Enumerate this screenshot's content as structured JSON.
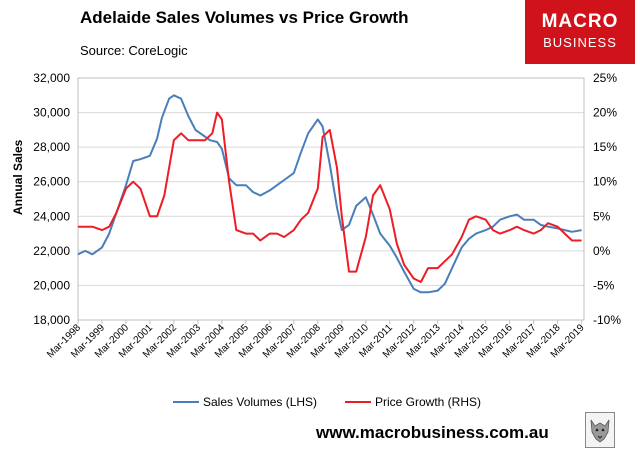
{
  "header": {
    "title": "Adelaide Sales Volumes vs Price Growth",
    "source": "Source: CoreLogic",
    "website": "www.macrobusiness.com.au"
  },
  "logo": {
    "line1": "MACRO",
    "line2": "BUSINESS",
    "color": "#d0121b"
  },
  "chart_data": {
    "type": "line",
    "title": "Adelaide Sales Volumes vs Price Growth",
    "ylabel": "Annual Sales",
    "ylim": [
      18000,
      32000
    ],
    "y2lim": [
      -10,
      25
    ],
    "yticks": [
      "32,000",
      "30,000",
      "28,000",
      "26,000",
      "24,000",
      "22,000",
      "20,000",
      "18,000"
    ],
    "y2ticks": [
      "25%",
      "20%",
      "15%",
      "10%",
      "5%",
      "0%",
      "-5%",
      "-10%"
    ],
    "xlim": [
      1998,
      2019.1
    ],
    "categories": [
      "Mar-1998",
      "Mar-1999",
      "Mar-2000",
      "Mar-2001",
      "Mar-2002",
      "Mar-2003",
      "Mar-2004",
      "Mar-2005",
      "Mar-2006",
      "Mar-2007",
      "Mar-2008",
      "Mar-2009",
      "Mar-2010",
      "Mar-2011",
      "Mar-2012",
      "Mar-2013",
      "Mar-2014",
      "Mar-2015",
      "Mar-2016",
      "Mar-2017",
      "Mar-2018",
      "Mar-2019"
    ],
    "legend": "bottom",
    "series": [
      {
        "name": "Sales Volumes (LHS)",
        "axis": "left",
        "color": "#4a7ebb",
        "x": [
          1998.0,
          1998.3,
          1998.6,
          1999.0,
          1999.3,
          1999.6,
          2000.0,
          2000.3,
          2000.6,
          2001.0,
          2001.3,
          2001.5,
          2001.8,
          2002.0,
          2002.3,
          2002.6,
          2002.9,
          2003.2,
          2003.5,
          2003.8,
          2004.0,
          2004.3,
          2004.6,
          2005.0,
          2005.3,
          2005.6,
          2006.0,
          2006.3,
          2006.6,
          2007.0,
          2007.3,
          2007.6,
          2008.0,
          2008.2,
          2008.5,
          2008.8,
          2009.0,
          2009.3,
          2009.6,
          2010.0,
          2010.3,
          2010.6,
          2011.0,
          2011.3,
          2011.6,
          2012.0,
          2012.3,
          2012.6,
          2013.0,
          2013.3,
          2013.6,
          2014.0,
          2014.3,
          2014.6,
          2015.0,
          2015.3,
          2015.6,
          2016.0,
          2016.3,
          2016.6,
          2017.0,
          2017.3,
          2017.6,
          2018.0,
          2018.3,
          2018.6,
          2019.0
        ],
        "values": [
          21800,
          22000,
          21800,
          22200,
          23000,
          24200,
          25800,
          27200,
          27300,
          27500,
          28500,
          29700,
          30800,
          31000,
          30800,
          29800,
          29000,
          28700,
          28400,
          28300,
          27900,
          26200,
          25800,
          25800,
          25400,
          25200,
          25500,
          25800,
          26100,
          26500,
          27700,
          28800,
          29600,
          29200,
          27000,
          24500,
          23200,
          23500,
          24600,
          25100,
          24100,
          23000,
          22300,
          21600,
          20800,
          19800,
          19600,
          19600,
          19700,
          20100,
          21000,
          22200,
          22700,
          23000,
          23200,
          23400,
          23800,
          24000,
          24100,
          23800,
          23800,
          23500,
          23400,
          23300,
          23200,
          23100,
          23200
        ]
      },
      {
        "name": "Price Growth (RHS)",
        "axis": "right",
        "color": "#ee1c25",
        "x": [
          1998.0,
          1998.3,
          1998.6,
          1999.0,
          1999.3,
          1999.6,
          2000.0,
          2000.3,
          2000.6,
          2001.0,
          2001.3,
          2001.6,
          2002.0,
          2002.3,
          2002.6,
          2003.0,
          2003.3,
          2003.6,
          2003.8,
          2004.0,
          2004.3,
          2004.6,
          2005.0,
          2005.3,
          2005.6,
          2006.0,
          2006.3,
          2006.6,
          2007.0,
          2007.3,
          2007.6,
          2008.0,
          2008.2,
          2008.5,
          2008.8,
          2009.0,
          2009.3,
          2009.6,
          2010.0,
          2010.3,
          2010.6,
          2011.0,
          2011.3,
          2011.6,
          2012.0,
          2012.3,
          2012.6,
          2013.0,
          2013.3,
          2013.6,
          2014.0,
          2014.3,
          2014.6,
          2015.0,
          2015.3,
          2015.6,
          2016.0,
          2016.3,
          2016.6,
          2017.0,
          2017.3,
          2017.6,
          2018.0,
          2018.3,
          2018.6,
          2019.0
        ],
        "values": [
          3.5,
          3.5,
          3.5,
          3.0,
          3.5,
          5.5,
          9.0,
          10.0,
          9.0,
          5.0,
          5.0,
          8.0,
          16.0,
          17.0,
          16.0,
          16.0,
          16.0,
          17.0,
          20.0,
          19.0,
          10.0,
          3.0,
          2.5,
          2.5,
          1.5,
          2.5,
          2.5,
          2.0,
          3.0,
          4.5,
          5.5,
          9.0,
          16.5,
          17.5,
          12.0,
          5.0,
          -3.0,
          -3.0,
          2.0,
          8.0,
          9.5,
          6.0,
          1.0,
          -2.0,
          -4.0,
          -4.5,
          -2.5,
          -2.5,
          -1.5,
          -0.5,
          2.0,
          4.5,
          5.0,
          4.5,
          3.0,
          2.5,
          3.0,
          3.5,
          3.0,
          2.5,
          3.0,
          4.0,
          3.5,
          2.5,
          1.5,
          1.5
        ]
      }
    ]
  }
}
